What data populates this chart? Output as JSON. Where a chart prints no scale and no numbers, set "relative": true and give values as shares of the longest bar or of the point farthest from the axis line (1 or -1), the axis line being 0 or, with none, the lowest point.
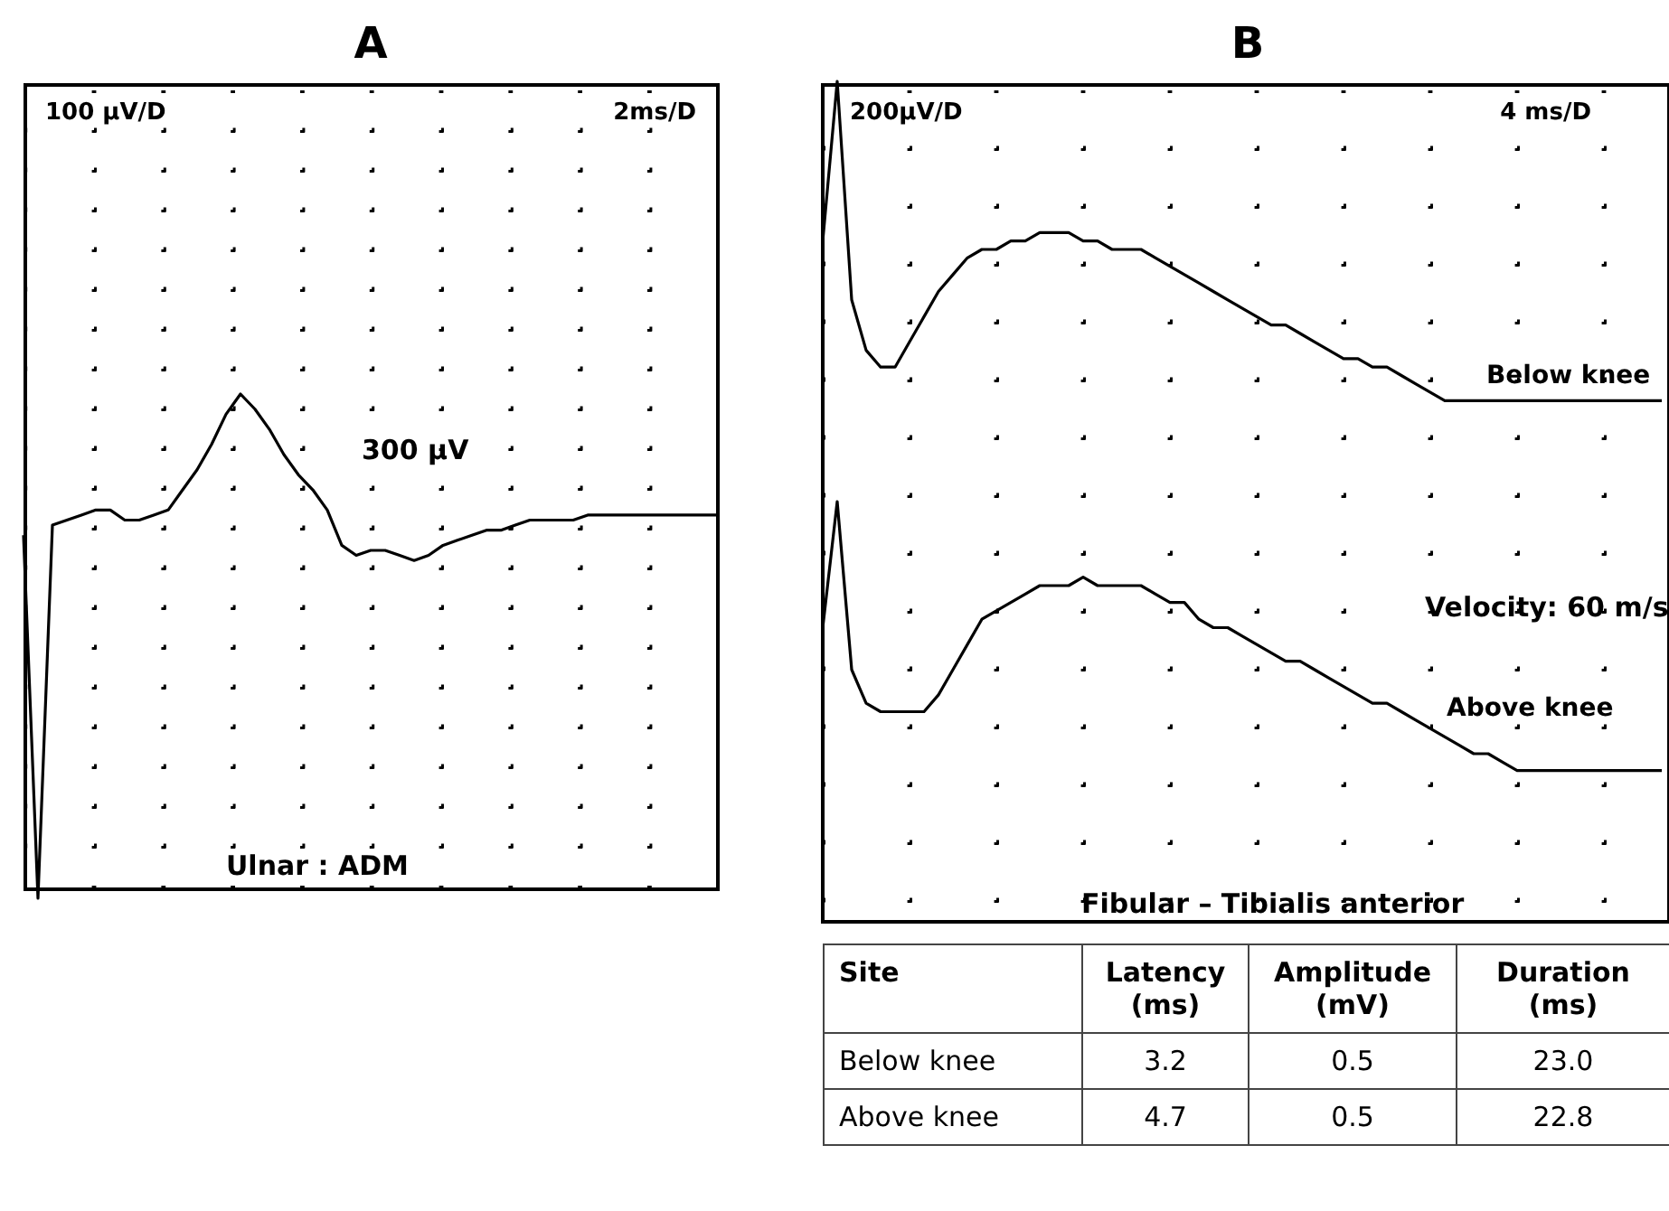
{
  "chart_data": [
    {
      "type": "line",
      "title": "A",
      "relative": true,
      "grid": true,
      "categories": [
        null,
        null,
        null,
        null,
        null,
        null,
        null,
        null,
        null,
        null,
        null,
        null,
        null,
        null,
        null,
        null,
        null,
        null,
        null,
        null,
        null,
        null,
        null,
        null,
        null,
        null,
        null,
        null,
        null,
        null,
        null,
        null,
        null,
        null,
        null,
        null,
        null,
        null,
        null,
        null,
        null,
        null,
        null,
        null,
        null,
        null,
        null,
        null,
        null
      ],
      "series": [
        {
          "color": "#000000",
          "values": [
            0.72,
            0,
            0.74,
            0.75,
            0.76,
            0.77,
            0.77,
            0.75,
            0.75,
            0.76,
            0.77,
            0.81,
            0.85,
            0.9,
            0.96,
            1,
            0.97,
            0.93,
            0.88,
            0.84,
            0.81,
            0.77,
            0.7,
            0.68,
            0.69,
            0.69,
            0.68,
            0.67,
            0.68,
            0.7,
            0.71,
            0.72,
            0.73,
            0.73,
            0.74,
            0.75,
            0.75,
            0.75,
            0.75,
            0.76,
            0.76,
            0.76,
            0.76,
            0.76,
            0.76,
            0.76,
            0.76,
            0.76,
            0.76
          ]
        }
      ],
      "annotations": [
        "100 µV/D",
        "2ms/D",
        "300 µV",
        "Ulnar : ADM"
      ]
    },
    {
      "type": "line",
      "title": "B",
      "relative": true,
      "grid": true,
      "categories": [
        null,
        null,
        null,
        null,
        null,
        null,
        null,
        null,
        null,
        null,
        null,
        null,
        null,
        null,
        null,
        null,
        null,
        null,
        null,
        null,
        null,
        null,
        null,
        null,
        null,
        null,
        null,
        null,
        null,
        null,
        null,
        null,
        null,
        null,
        null,
        null,
        null,
        null,
        null,
        null,
        null,
        null,
        null,
        null,
        null,
        null,
        null,
        null,
        null,
        null,
        null,
        null,
        null,
        null,
        null,
        null,
        null,
        null,
        null
      ],
      "series": [
        {
          "name": "Below knee",
          "color": "#000000",
          "values": [
            0.81,
            1,
            0.74,
            0.68,
            0.66,
            0.66,
            0.69,
            0.72,
            0.75,
            0.77,
            0.79,
            0.8,
            0.8,
            0.81,
            0.81,
            0.82,
            0.82,
            0.82,
            0.81,
            0.81,
            0.8,
            0.8,
            0.8,
            0.79,
            0.78,
            0.77,
            0.76,
            0.75,
            0.74,
            0.73,
            0.72,
            0.71,
            0.71,
            0.7,
            0.69,
            0.68,
            0.67,
            0.67,
            0.66,
            0.66,
            0.65,
            0.64,
            0.63,
            0.62,
            0.62,
            0.62,
            0.62,
            0.62,
            0.62,
            0.62,
            0.62,
            0.62,
            0.62,
            0.62,
            0.62,
            0.62,
            0.62,
            0.62,
            0.62
          ]
        },
        {
          "name": "Above knee",
          "color": "#000000",
          "values": [
            0.35,
            0.5,
            0.3,
            0.26,
            0.25,
            0.25,
            0.25,
            0.25,
            0.27,
            0.3,
            0.33,
            0.36,
            0.37,
            0.38,
            0.39,
            0.4,
            0.4,
            0.4,
            0.41,
            0.4,
            0.4,
            0.4,
            0.4,
            0.39,
            0.38,
            0.38,
            0.36,
            0.35,
            0.35,
            0.34,
            0.33,
            0.32,
            0.31,
            0.31,
            0.3,
            0.29,
            0.28,
            0.27,
            0.26,
            0.26,
            0.25,
            0.24,
            0.23,
            0.22,
            0.21,
            0.2,
            0.2,
            0.19,
            0.18,
            0.18,
            0.18,
            0.18,
            0.18,
            0.18,
            0.18,
            0.18,
            0.18,
            0.18,
            0.18
          ]
        }
      ],
      "annotations": [
        "200µV/D",
        "4 ms/D",
        "Velocity: 60 m/s",
        "Fibular – Tibialis anterior"
      ]
    },
    {
      "type": "other",
      "ylabel": "Site",
      "categories": [
        "Latency (ms)",
        "Amplitude (mV)",
        "Duration (ms)"
      ],
      "y_categories": [
        "Below knee",
        "Above knee"
      ],
      "cell_labels": [
        [
          "3.2",
          "0.5",
          "23.0"
        ],
        [
          "4.7",
          "0.5",
          "22.8"
        ]
      ]
    }
  ]
}
